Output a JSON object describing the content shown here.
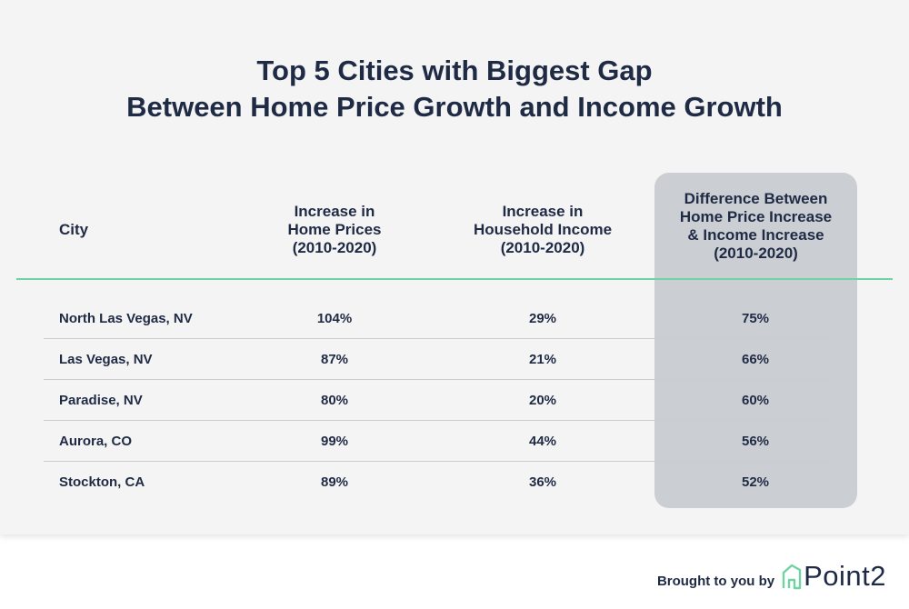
{
  "title": {
    "line1": "Top 5 Cities with Biggest Gap",
    "line2": "Between Home Price Growth and Income Growth"
  },
  "chart_data": {
    "type": "table",
    "columns": [
      {
        "label": "City",
        "lines": [
          "City"
        ]
      },
      {
        "label": "Increase in Home Prices (2010-2020)",
        "lines": [
          "Increase in",
          "Home Prices",
          "(2010-2020)"
        ]
      },
      {
        "label": "Increase in Household Income (2010-2020)",
        "lines": [
          "Increase in",
          "Household Income",
          "(2010-2020)"
        ]
      },
      {
        "label": "Difference Between Home Price Increase & Income Increase (2010-2020)",
        "lines": [
          "Difference Between",
          "Home Price Increase",
          "& Income Increase",
          "(2010-2020)"
        ]
      }
    ],
    "rows": [
      {
        "city": "North Las Vegas, NV",
        "home_price_increase": "104%",
        "income_increase": "29%",
        "difference": "75%"
      },
      {
        "city": "Las Vegas, NV",
        "home_price_increase": "87%",
        "income_increase": "21%",
        "difference": "66%"
      },
      {
        "city": "Paradise, NV",
        "home_price_increase": "80%",
        "income_increase": "20%",
        "difference": "60%"
      },
      {
        "city": "Aurora, CO",
        "home_price_increase": "99%",
        "income_increase": "44%",
        "difference": "56%"
      },
      {
        "city": "Stockton, CA",
        "home_price_increase": "89%",
        "income_increase": "36%",
        "difference": "52%"
      }
    ],
    "highlighted_column": "Difference Between Home Price Increase & Income Increase (2010-2020)"
  },
  "footer": {
    "brought_by": "Brought to you by",
    "brand": "Point2",
    "logo_icon": "house-outline-icon"
  },
  "colors": {
    "text": "#1f2a44",
    "header_rule": "#6fd3a4",
    "highlight_column": "#cbcfd4",
    "panel_background": "#f4f4f4"
  }
}
